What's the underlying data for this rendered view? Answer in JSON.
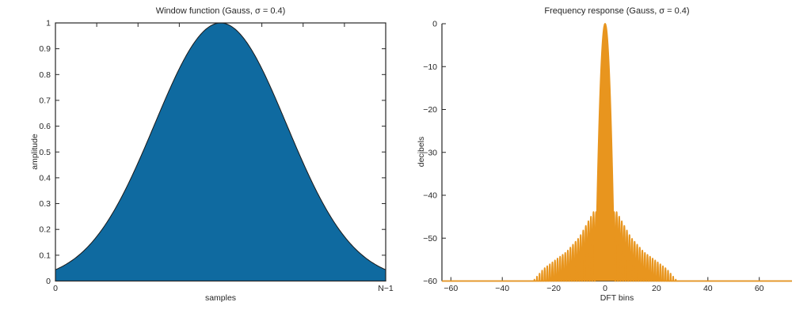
{
  "figure": {
    "background": "#ffffff",
    "text_color": "#262626",
    "axis_color": "#262626"
  },
  "chart_data": [
    {
      "type": "area",
      "title": "Window function (Gauss, σ = 0.4)",
      "xlabel": "samples",
      "ylabel": "amplitude",
      "x_tick_labels": [
        "0",
        "N−1"
      ],
      "y_tick_labels": [
        "0",
        "0.1",
        "0.2",
        "0.3",
        "0.4",
        "0.5",
        "0.6",
        "0.7",
        "0.8",
        "0.9",
        "1"
      ],
      "ylim": [
        0,
        1
      ],
      "sigma": 0.4,
      "peak_value": 1.0,
      "edge_value": 0.044,
      "fill_color": "#0f6aa0",
      "edge_color": "#1a1a1a",
      "series": {
        "x_norm": [
          0,
          0.0625,
          0.125,
          0.1875,
          0.25,
          0.3125,
          0.375,
          0.4375,
          0.5,
          0.5625,
          0.625,
          0.6875,
          0.75,
          0.8125,
          0.875,
          0.9375,
          1
        ],
        "amplitude": [
          0.044,
          0.091,
          0.172,
          0.295,
          0.458,
          0.644,
          0.823,
          0.952,
          1.0,
          0.952,
          0.823,
          0.644,
          0.458,
          0.295,
          0.172,
          0.091,
          0.044
        ]
      }
    },
    {
      "type": "area",
      "title": "Frequency response (Gauss, σ = 0.4)",
      "xlabel": "DFT bins",
      "ylabel": "decibels",
      "x_ticks": [
        -60,
        -40,
        -20,
        0,
        20,
        40,
        60
      ],
      "y_ticks": [
        0,
        -10,
        -20,
        -30,
        -40,
        -50,
        -60
      ],
      "xlim": [
        -63.5,
        72.7
      ],
      "ylim": [
        -60,
        0
      ],
      "peak_db": 0,
      "mainlobe_db_per_bin2": -4.4,
      "mainlobe_null_bin": 3.7,
      "sidelobe_period_bins": 1,
      "sidelobe_envelope_db": [
        [
          4.5,
          -43.9
        ],
        [
          10,
          -49.8
        ],
        [
          15,
          -53.2
        ],
        [
          20,
          -55.4
        ],
        [
          24,
          -57.2
        ],
        [
          28,
          -60
        ]
      ],
      "floor_db": -60,
      "fill_color": "#e8951e"
    }
  ]
}
